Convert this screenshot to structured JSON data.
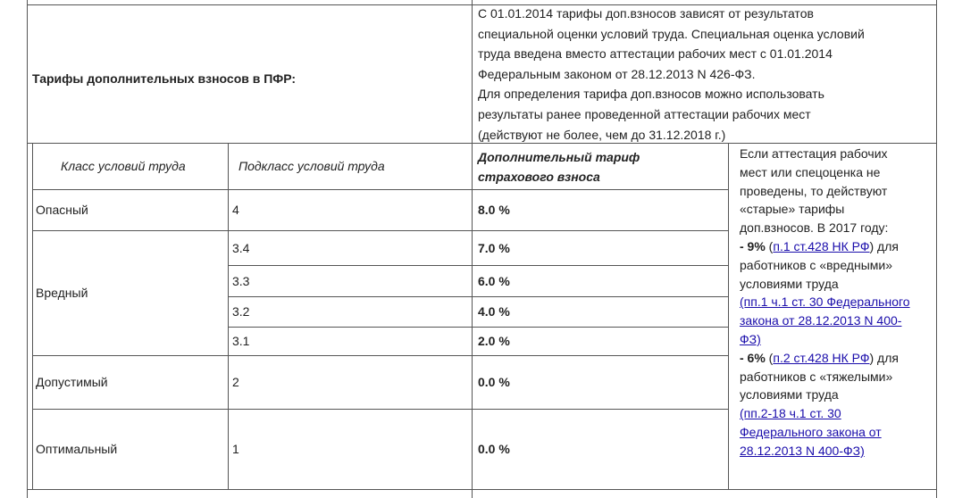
{
  "header": {
    "label": "Тарифы дополнительных взносов в ПФР:",
    "note_lines": [
      "С 01.01.2014 тарифы доп.взносов зависят от результатов",
      "специальной оценки условий труда. Специальная оценка условий",
      "труда введена вместо аттестации рабочих мест с 01.01.2014",
      "Федеральным законом от 28.12.2013 N 426-ФЗ.",
      "Для определения тарифа доп.взносов можно использовать",
      "результаты ранее проведенной аттестации рабочих мест",
      "(действуют не более, чем до 31.12.2018 г.)"
    ]
  },
  "table": {
    "columns": {
      "class": "Класс условий труда",
      "subclass": "Подкласс условий труда",
      "rate_lines": [
        "Дополнительный тариф",
        "страхового взноса"
      ]
    },
    "groups": [
      {
        "class": "Опасный",
        "rows": [
          {
            "subclass": "4",
            "rate": "8.0 %"
          }
        ]
      },
      {
        "class": "Вредный",
        "rows": [
          {
            "subclass": "3.4",
            "rate": "7.0 %"
          },
          {
            "subclass": "3.3",
            "rate": "6.0 %"
          },
          {
            "subclass": "3.2",
            "rate": "4.0 %"
          },
          {
            "subclass": "3.1",
            "rate": "2.0 %"
          }
        ]
      },
      {
        "class": "Допустимый",
        "rows": [
          {
            "subclass": "2",
            "rate": "0.0 %"
          }
        ]
      },
      {
        "class": "Оптимальный",
        "rows": [
          {
            "subclass": "1",
            "rate": "0.0 %"
          }
        ]
      }
    ]
  },
  "side_note": [
    [
      {
        "text": "Если аттестация рабочих",
        "style": "plain"
      }
    ],
    [
      {
        "text": "мест или спецоценка не",
        "style": "plain"
      }
    ],
    [
      {
        "text": "проведены, то действуют",
        "style": "plain"
      }
    ],
    [
      {
        "text": "«старые» тарифы",
        "style": "plain"
      }
    ],
    [
      {
        "text": "доп.взносов. В 2017 году:",
        "style": "plain"
      }
    ],
    [
      {
        "text": "- 9%",
        "style": "bold"
      },
      {
        "text": " (",
        "style": "plain"
      },
      {
        "text": "п.1 ст.428 НК РФ",
        "style": "link"
      },
      {
        "text": ") для",
        "style": "plain"
      }
    ],
    [
      {
        "text": "работников с «вредными»",
        "style": "plain"
      }
    ],
    [
      {
        "text": "условиями труда",
        "style": "plain"
      }
    ],
    [
      {
        "text": "(пп.1 ч.1 ст. 30 Федерального",
        "style": "link"
      }
    ],
    [
      {
        "text": "закона от 28.12.2013 N 400-",
        "style": "link"
      }
    ],
    [
      {
        "text": "ФЗ)",
        "style": "link"
      }
    ],
    [
      {
        "text": "- 6%",
        "style": "bold"
      },
      {
        "text": " (",
        "style": "plain"
      },
      {
        "text": "п.2 ст.428 НК РФ",
        "style": "link"
      },
      {
        "text": ") для",
        "style": "plain"
      }
    ],
    [
      {
        "text": "работников с «тяжелыми»",
        "style": "plain"
      }
    ],
    [
      {
        "text": "условиями труда",
        "style": "plain"
      }
    ],
    [
      {
        "text": "(пп.2-18 ч.1 ст. 30",
        "style": "link"
      }
    ],
    [
      {
        "text": "Федерального закона от",
        "style": "link"
      }
    ],
    [
      {
        "text": "28.12.2013 N 400-ФЗ)",
        "style": "link"
      }
    ]
  ]
}
